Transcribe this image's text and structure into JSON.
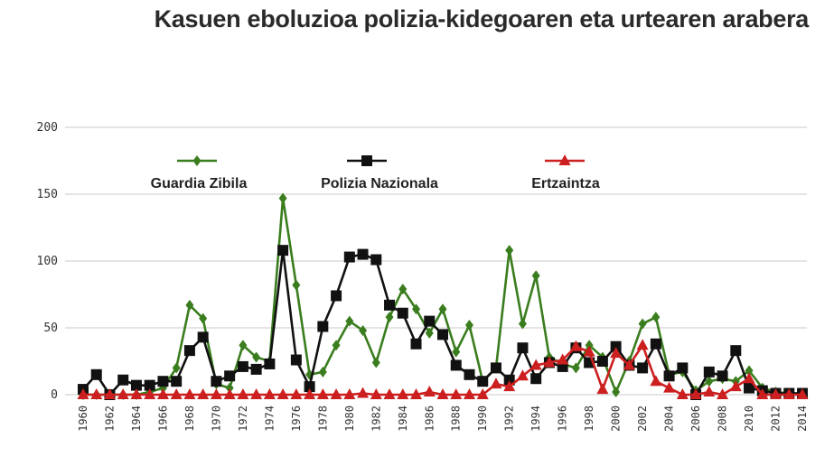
{
  "title": "Kasuen eboluzioa polizia-kidegoaren eta urtearen arabera",
  "chart_data": {
    "type": "line",
    "title": "Kasuen eboluzioa polizia-kidegoaren eta urtearen arabera",
    "xlabel": "",
    "ylabel": "",
    "ylim": [
      0,
      200
    ],
    "yticks": [
      0,
      50,
      100,
      150,
      200
    ],
    "xticks": [
      "1960",
      "1962",
      "1964",
      "1966",
      "1968",
      "1970",
      "1972",
      "1974",
      "1976",
      "1978",
      "1980",
      "1982",
      "1984",
      "1986",
      "1988",
      "1990",
      "1992",
      "1994",
      "1996",
      "1998",
      "2000",
      "2002",
      "2004",
      "2006",
      "2008",
      "2010",
      "2012",
      "2014"
    ],
    "grid": true,
    "legend": "top",
    "x": [
      1960,
      1961,
      1962,
      1963,
      1964,
      1965,
      1966,
      1967,
      1968,
      1969,
      1970,
      1971,
      1972,
      1973,
      1974,
      1975,
      1976,
      1977,
      1978,
      1979,
      1980,
      1981,
      1982,
      1983,
      1984,
      1985,
      1986,
      1987,
      1988,
      1989,
      1990,
      1991,
      1992,
      1993,
      1994,
      1995,
      1996,
      1997,
      1998,
      1999,
      2000,
      2001,
      2002,
      2003,
      2004,
      2005,
      2006,
      2007,
      2008,
      2009,
      2010,
      2011,
      2012,
      2013,
      2014
    ],
    "series": [
      {
        "name": "Guardia Zibila",
        "color": "#3a7d1e",
        "marker": "diamond",
        "values": [
          0,
          0,
          0,
          0,
          0,
          2,
          5,
          20,
          67,
          57,
          8,
          5,
          37,
          28,
          25,
          147,
          82,
          15,
          17,
          37,
          55,
          48,
          24,
          58,
          79,
          64,
          46,
          64,
          32,
          52,
          10,
          20,
          108,
          53,
          89,
          28,
          23,
          20,
          37,
          28,
          2,
          25,
          53,
          58,
          15,
          17,
          3,
          10,
          12,
          10,
          18,
          5,
          2,
          1,
          1
        ]
      },
      {
        "name": "Polizia Nazionala",
        "color": "#111111",
        "marker": "square",
        "values": [
          4,
          15,
          0,
          11,
          7,
          7,
          10,
          10,
          33,
          43,
          10,
          14,
          21,
          19,
          23,
          108,
          26,
          6,
          51,
          74,
          103,
          105,
          101,
          67,
          61,
          38,
          55,
          45,
          22,
          15,
          10,
          20,
          11,
          35,
          12,
          24,
          21,
          35,
          24,
          25,
          36,
          22,
          20,
          38,
          14,
          20,
          0,
          17,
          14,
          33,
          5,
          3,
          1,
          1,
          1
        ]
      },
      {
        "name": "Ertzaintza",
        "color": "#cc1f1f",
        "marker": "triangle",
        "values": [
          0,
          0,
          0,
          0,
          0,
          0,
          0,
          0,
          0,
          0,
          0,
          0,
          0,
          0,
          0,
          0,
          0,
          0,
          0,
          0,
          0,
          1,
          0,
          0,
          0,
          0,
          2,
          0,
          0,
          0,
          0,
          8,
          6,
          14,
          22,
          24,
          26,
          36,
          32,
          4,
          31,
          22,
          37,
          10,
          5,
          0,
          0,
          2,
          0,
          6,
          12,
          0,
          0,
          0,
          0
        ]
      }
    ]
  }
}
